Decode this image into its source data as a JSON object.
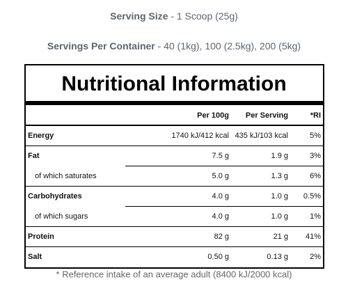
{
  "serving": {
    "size_label": "Serving Size",
    "size_value": " - 1 Scoop (25g)",
    "per_container_label": "Servings Per Container",
    "per_container_value": " - 40 (1kg), 100 (2.5kg), 200 (5kg)"
  },
  "table": {
    "title": "Nutritional Information",
    "header": [
      "Per 100g",
      "Per Serving",
      "*RI"
    ],
    "rows": [
      [
        "Energy",
        "1740 kJ/412 kcal",
        "435 kJ/103 kcal",
        "5%"
      ],
      [
        "Fat",
        "7.5 g",
        "1.9 g",
        "3%"
      ],
      [
        "of which saturates",
        "5.0 g",
        "1.3 g",
        "6%"
      ],
      [
        "Carbohydrates",
        "4.0 g",
        "1.0 g",
        "0.5%"
      ],
      [
        "of which sugars",
        "4.0 g",
        "1.0 g",
        "1%"
      ],
      [
        "Protein",
        "82 g",
        "21 g",
        "41%"
      ],
      [
        "Salt",
        "0.50 g",
        "0.13 g",
        "2%"
      ]
    ],
    "footnote": "* Reference intake of an average adult (8400 kJ/2000 kcal)"
  }
}
